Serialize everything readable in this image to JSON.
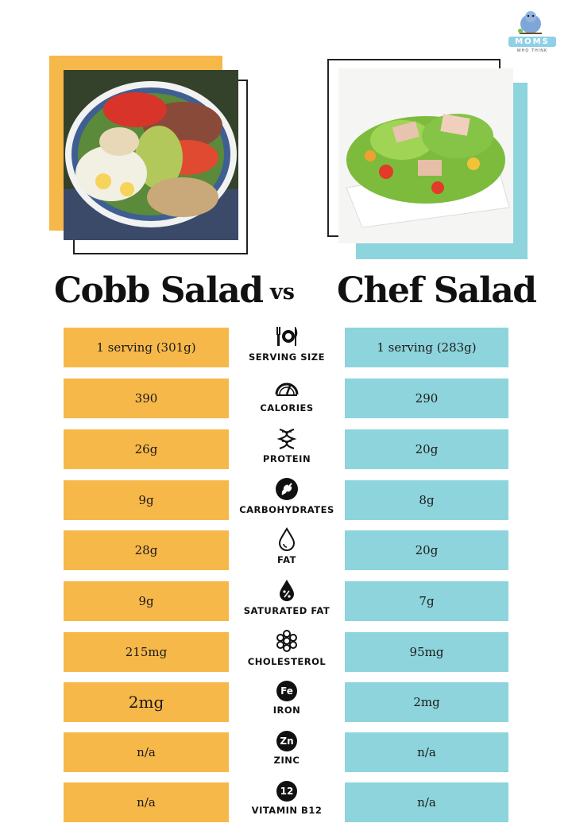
{
  "logo": {
    "text": "MOMS",
    "tagline": "WHO THINK"
  },
  "titles": {
    "left": "Cobb Salad",
    "vs": "vs",
    "right": "Chef Salad"
  },
  "rows": [
    {
      "label": "SERVING SIZE",
      "icon": "utensils-plate-icon",
      "left": "1 serving (301g)",
      "right": "1 serving (283g)"
    },
    {
      "label": "CALORIES",
      "icon": "gauge-icon",
      "left": "390",
      "right": "290"
    },
    {
      "label": "PROTEIN",
      "icon": "dna-icon",
      "left": "26g",
      "right": "20g"
    },
    {
      "label": "CARBOHYDRATES",
      "icon": "wheat-icon",
      "left": "9g",
      "right": "8g"
    },
    {
      "label": "FAT",
      "icon": "drop-icon",
      "left": "28g",
      "right": "20g"
    },
    {
      "label": "SATURATED FAT",
      "icon": "percent-drop-icon",
      "left": "9g",
      "right": "7g"
    },
    {
      "label": "CHOLESTEROL",
      "icon": "molecule-icon",
      "left": "215mg",
      "right": "95mg"
    },
    {
      "label": "IRON",
      "icon": "iron-icon",
      "badge": "Fe",
      "left": "2mg",
      "right": "2mg"
    },
    {
      "label": "ZINC",
      "icon": "zinc-icon",
      "badge": "Zn",
      "left": "n/a",
      "right": "n/a"
    },
    {
      "label": "VITAMIN B12",
      "icon": "b12-icon",
      "badge": "12",
      "left": "n/a",
      "right": "n/a"
    }
  ],
  "colors": {
    "orange": "#f7b84a",
    "teal": "#8ed4dc",
    "text": "#111111"
  }
}
